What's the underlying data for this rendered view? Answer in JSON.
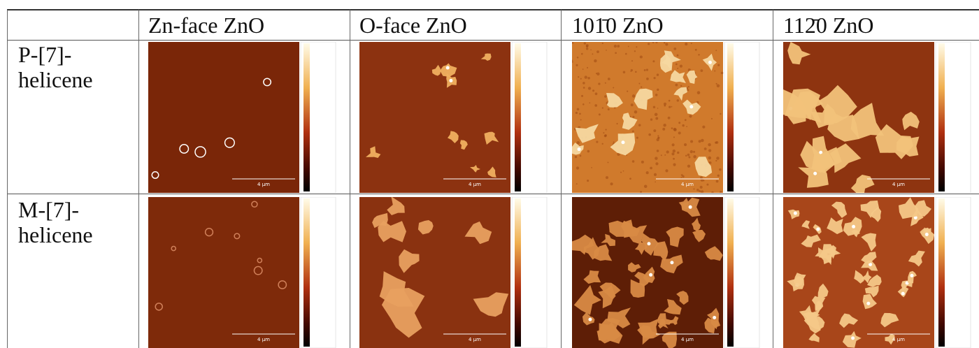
{
  "table": {
    "columns": [
      "Zn-face ZnO",
      "O-face ZnO",
      "101̄0 ZnO",
      "112̄0 ZnO"
    ],
    "rows": [
      {
        "label": "P-[7]-helicene"
      },
      {
        "label": "M-[7]-helicene"
      }
    ],
    "scale_bar": "4 µm"
  }
}
